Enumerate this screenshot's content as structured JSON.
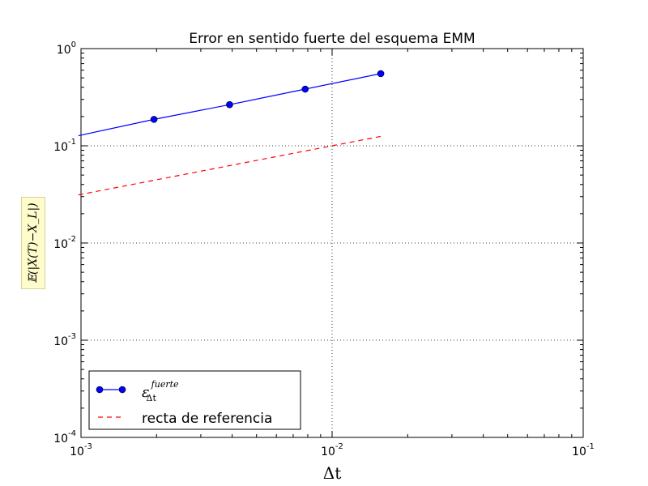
{
  "chart_data": {
    "type": "line",
    "title": "Error en sentido fuerte del esquema EMM",
    "xlabel": "Δt",
    "ylabel": "𝔼(|X(T)−X_L|)",
    "x_scale": "log",
    "y_scale": "log",
    "xlim": [
      0.001,
      0.1
    ],
    "ylim": [
      0.0001,
      1
    ],
    "grid": true,
    "legend_position": "lower-left",
    "x_ticks": [
      {
        "base": "10",
        "exp": "-3"
      },
      {
        "base": "10",
        "exp": "-2"
      },
      {
        "base": "10",
        "exp": "-1"
      }
    ],
    "y_ticks": [
      {
        "base": "10",
        "exp": "-4"
      },
      {
        "base": "10",
        "exp": "-3"
      },
      {
        "base": "10",
        "exp": "-2"
      },
      {
        "base": "10",
        "exp": "-1"
      },
      {
        "base": "10",
        "exp": "0"
      }
    ],
    "series": [
      {
        "name": "ε_Δt^fuerte",
        "name_main": "ε",
        "name_sup": "fuerte",
        "name_sub": "Δt",
        "color": "#0000ff",
        "style": "solid",
        "marker": "circle",
        "x": [
          0.0009766,
          0.001953,
          0.003906,
          0.007813,
          0.015625
        ],
        "y": [
          0.127,
          0.187,
          0.265,
          0.383,
          0.553
        ]
      },
      {
        "name": "recta de referencia",
        "color": "#ff0000",
        "style": "dashed",
        "marker": "none",
        "x": [
          0.0009766,
          0.001953,
          0.003906,
          0.007813,
          0.015625
        ],
        "y": [
          0.03125,
          0.0442,
          0.0625,
          0.0884,
          0.125
        ]
      }
    ]
  }
}
